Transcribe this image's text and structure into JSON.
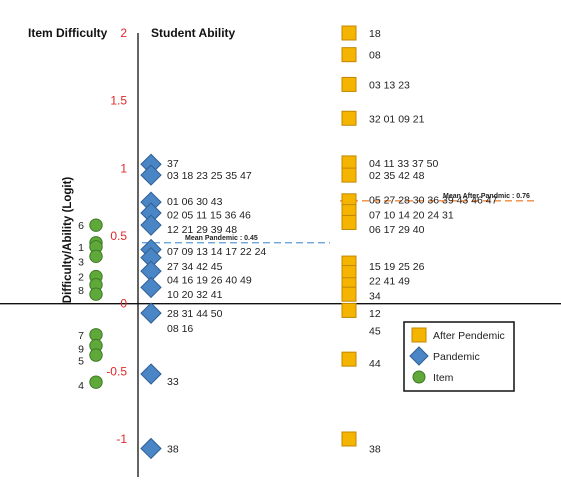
{
  "chart_data": {
    "type": "scatter",
    "title_left": "Item Difficulty",
    "title_right": "Student Ability",
    "ylabel": "Difficulty/Ability (Logit)",
    "ylim": [
      -1,
      2
    ],
    "yticks": [
      2,
      1.5,
      1,
      0.5,
      0,
      -0.5,
      -1
    ],
    "ytick_labels": [
      "2",
      "1.5",
      "1",
      "0.5",
      "0",
      "-0.5",
      "-1"
    ],
    "colors": {
      "item": "#5fa83a",
      "pandemic": "#4a86c5",
      "after": "#f5b400",
      "mean_pandemic_line": "#5b9bd5",
      "mean_after_line": "#f08a3c"
    },
    "legend": {
      "placement": "bottom-right",
      "entries": [
        "After Pendemic",
        "Pandemic",
        "Item"
      ]
    },
    "mean_lines": [
      {
        "label": "Mean Pandemic : 0.45",
        "value": 0.45
      },
      {
        "label": "Mean After Pandmic : 0.76",
        "value": 0.76
      }
    ],
    "series": [
      {
        "name": "Item",
        "points": [
          {
            "y": 0.58,
            "dx": 0,
            "label": "6"
          },
          {
            "y": 0.45,
            "dx": 0,
            "label": ""
          },
          {
            "y": 0.42,
            "dx": 0,
            "label": "1"
          },
          {
            "y": 0.35,
            "dx": 0,
            "label": "3"
          },
          {
            "y": 0.2,
            "dx": 0,
            "label": "2"
          },
          {
            "y": 0.14,
            "dx": 0,
            "label": "5"
          },
          {
            "y": 0.07,
            "dx": 0,
            "label": "8"
          },
          {
            "y": -0.23,
            "dx": 0,
            "label": "7"
          },
          {
            "y": -0.31,
            "dx": 0,
            "label": "9"
          },
          {
            "y": -0.38,
            "dx": 0,
            "label": "5"
          },
          {
            "y": -0.58,
            "dx": 0,
            "label": "4"
          }
        ],
        "labels": [
          {
            "y": 0.58,
            "text": "6"
          },
          {
            "y": 0.42,
            "text": "1"
          },
          {
            "y": 0.31,
            "text": "3"
          },
          {
            "y": 0.2,
            "text": "2"
          },
          {
            "y": 0.1,
            "text": "8"
          },
          {
            "y": -0.23,
            "text": "7"
          },
          {
            "y": -0.33,
            "text": "9"
          },
          {
            "y": -0.42,
            "text": "5"
          },
          {
            "y": -0.6,
            "text": "4"
          }
        ]
      },
      {
        "name": "Pandemic",
        "points": [
          {
            "y": 1.03,
            "label": "37"
          },
          {
            "y": 0.95,
            "label": "03 18 23 25 35 47"
          },
          {
            "y": 0.75,
            "label": "01 06 30 43"
          },
          {
            "y": 0.67,
            "label": "02 05 11 15 36 46"
          },
          {
            "y": 0.58,
            "label": "12 21 29 39 48"
          },
          {
            "y": 0.4,
            "label": "07 09 13 14 17 22 24"
          },
          {
            "y": 0.34,
            "label": ""
          },
          {
            "y": 0.24,
            "label": "27 34 42 45"
          },
          {
            "y": 0.12,
            "label": "04 16 19 26 40 49"
          },
          {
            "y": -0.07,
            "label": "28 31 44 50"
          },
          {
            "y": -0.52,
            "label": "33"
          },
          {
            "y": -1.07,
            "label": "38"
          }
        ],
        "labels": [
          {
            "y": 1.04,
            "text": "37"
          },
          {
            "y": 0.95,
            "text": "03 18 23 25 35 47"
          },
          {
            "y": 0.76,
            "text": "01 06 30 43"
          },
          {
            "y": 0.66,
            "text": "02 05 11 15 36 46"
          },
          {
            "y": 0.55,
            "text": "12 21 29 39 48"
          },
          {
            "y": 0.39,
            "text": "07 09 13 14 17 22 24"
          },
          {
            "y": 0.28,
            "text": "27 34 42 45"
          },
          {
            "y": 0.18,
            "text": "04 16 19 26 40 49"
          },
          {
            "y": 0.07,
            "text": "10 20 32 41"
          },
          {
            "y": -0.07,
            "text": "28 31 44 50"
          },
          {
            "y": -0.18,
            "text": "08 16"
          },
          {
            "y": -0.57,
            "text": "33"
          },
          {
            "y": -1.07,
            "text": "38"
          }
        ]
      },
      {
        "name": "After Pendemic",
        "points": [
          {
            "y": 2.0,
            "label": "18"
          },
          {
            "y": 1.84,
            "label": "08"
          },
          {
            "y": 1.62,
            "label": "03 13 23"
          },
          {
            "y": 1.37,
            "label": "32 01 09 21"
          },
          {
            "y": 1.04,
            "label": "04 11 33 37 50"
          },
          {
            "y": 0.95,
            "label": "02 35 42 48"
          },
          {
            "y": 0.76,
            "label": "05 27 28 30 36 39 43 46 47"
          },
          {
            "y": 0.68,
            "label": "07 10 14 20 24 31"
          },
          {
            "y": 0.6,
            "label": "06 17 29 40"
          },
          {
            "y": 0.3,
            "label": ""
          },
          {
            "y": 0.23,
            "label": "15 19 25 26"
          },
          {
            "y": 0.14,
            "label": "22 41 49"
          },
          {
            "y": 0.07,
            "label": "34"
          },
          {
            "y": -0.05,
            "label": "12"
          },
          {
            "y": -0.41,
            "label": "44"
          },
          {
            "y": -1.0,
            "label": "38"
          }
        ],
        "labels": [
          {
            "y": 2.0,
            "text": "18"
          },
          {
            "y": 1.84,
            "text": "08"
          },
          {
            "y": 1.62,
            "text": "03 13 23"
          },
          {
            "y": 1.37,
            "text": "32 01 09 21"
          },
          {
            "y": 1.04,
            "text": "04 11 33 37 50"
          },
          {
            "y": 0.95,
            "text": "02 35 42 48"
          },
          {
            "y": 0.77,
            "text": "05 27 28 30 36 39 43 46 47"
          },
          {
            "y": 0.66,
            "text": "07 10 14 20 24 31"
          },
          {
            "y": 0.55,
            "text": "06 17 29 40"
          },
          {
            "y": 0.28,
            "text": "15 19 25 26"
          },
          {
            "y": 0.17,
            "text": "22 41 49"
          },
          {
            "y": 0.06,
            "text": "34"
          },
          {
            "y": -0.07,
            "text": "12"
          },
          {
            "y": -0.2,
            "text": "45"
          },
          {
            "y": -0.44,
            "text": "44"
          },
          {
            "y": -1.07,
            "text": "38"
          }
        ]
      }
    ]
  }
}
